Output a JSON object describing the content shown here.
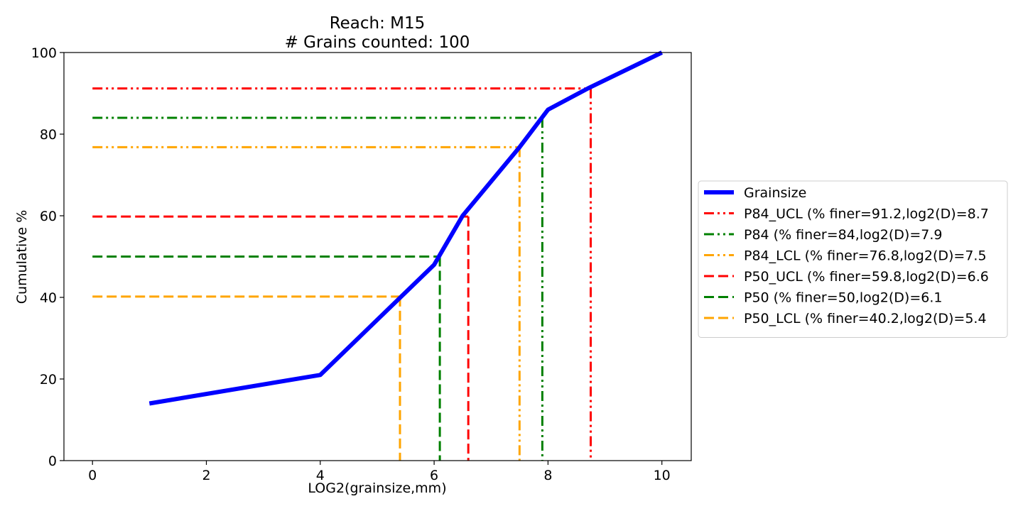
{
  "chart_data": {
    "type": "line",
    "title": "Reach: M15",
    "subtitle": "# Grains counted: 100",
    "xlabel": "LOG2(grainsize,mm)",
    "ylabel": "Cumulative %",
    "xlim": [
      -0.5,
      10.5
    ],
    "ylim": [
      0,
      100
    ],
    "xticks": [
      0,
      2,
      4,
      6,
      8,
      10
    ],
    "yticks": [
      0,
      20,
      40,
      60,
      80,
      100
    ],
    "grid": false,
    "legend_position": "outside-right",
    "series": [
      {
        "name": "Grainsize",
        "style": "solid",
        "color": "#0000ff",
        "x": [
          1,
          4,
          6,
          6.5,
          7.5,
          8,
          8.7,
          10
        ],
        "y": [
          14,
          21,
          48,
          60,
          76.8,
          86,
          91.2,
          100
        ]
      }
    ],
    "reference_lines": [
      {
        "name": "P84_UCL (% finer=91.2,log2(D)=8.7",
        "pct": 91.2,
        "log2d": 8.75,
        "color": "#ff0000",
        "style": "dashdotdot"
      },
      {
        "name": "P84 (% finer=84,log2(D)=7.9",
        "pct": 84,
        "log2d": 7.9,
        "color": "#008000",
        "style": "dashdotdot"
      },
      {
        "name": "P84_LCL (% finer=76.8,log2(D)=7.5",
        "pct": 76.8,
        "log2d": 7.5,
        "color": "#ffa500",
        "style": "dashdotdot"
      },
      {
        "name": "P50_UCL (% finer=59.8,log2(D)=6.6",
        "pct": 59.8,
        "log2d": 6.6,
        "color": "#ff0000",
        "style": "dashed"
      },
      {
        "name": "P50 (% finer=50,log2(D)=6.1",
        "pct": 50,
        "log2d": 6.1,
        "color": "#008000",
        "style": "dashed"
      },
      {
        "name": "P50_LCL (% finer=40.2,log2(D)=5.4",
        "pct": 40.2,
        "log2d": 5.4,
        "color": "#ffa500",
        "style": "dashed"
      }
    ]
  }
}
